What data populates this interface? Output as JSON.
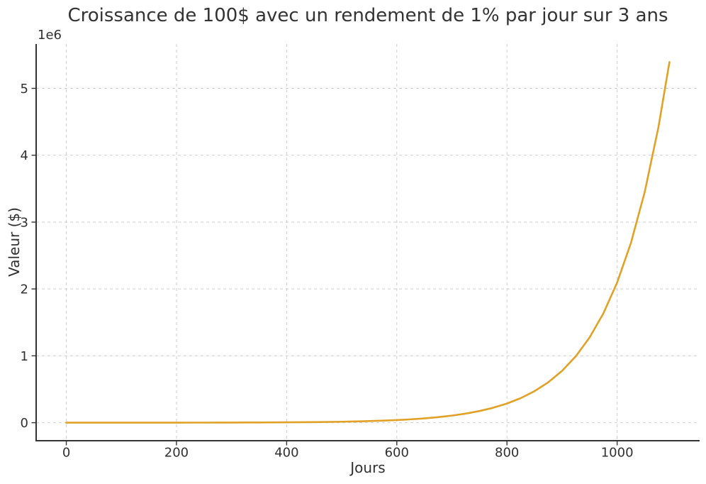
{
  "chart_data": {
    "type": "line",
    "title": "Croissance de 100$ avec un rendement de 1% par jour sur 3 ans",
    "xlabel": "Jours",
    "ylabel": "Valeur ($)",
    "y_offset_text": "1e6",
    "grid": true,
    "legend_position": "none",
    "line_color": "#E1A126",
    "axis_color": "#333333",
    "grid_color": "#cdcdcd",
    "text_color": "#303030",
    "xlim": [
      -54.75,
      1149.75
    ],
    "ylim": [
      -269590,
      5663590
    ],
    "xticks": {
      "values": [
        0,
        200,
        400,
        600,
        800,
        1000
      ],
      "labels": [
        "0",
        "200",
        "400",
        "600",
        "800",
        "1000"
      ]
    },
    "yticks": {
      "values": [
        0,
        1000000,
        2000000,
        3000000,
        4000000,
        5000000
      ],
      "labels": [
        "0",
        "1",
        "2",
        "3",
        "4",
        "5"
      ]
    },
    "x": [
      0,
      25,
      50,
      75,
      100,
      125,
      150,
      175,
      200,
      225,
      250,
      275,
      300,
      325,
      350,
      375,
      400,
      425,
      450,
      475,
      500,
      525,
      550,
      575,
      600,
      625,
      650,
      675,
      700,
      725,
      750,
      775,
      800,
      825,
      850,
      875,
      900,
      925,
      950,
      975,
      1000,
      1025,
      1050,
      1075,
      1095
    ],
    "y": [
      100,
      128,
      164,
      211,
      270,
      347,
      445,
      571,
      732,
      938,
      1203,
      1543,
      1979,
      2538,
      3255,
      4174,
      5354,
      6866,
      8805,
      11292,
      14477,
      18566,
      23810,
      30535,
      39160,
      50220,
      64400,
      82590,
      105920,
      135840,
      174210,
      223410,
      286510,
      367430,
      471210,
      604300,
      774990,
      993830,
      1274500,
      1634500,
      2095900,
      2687800,
      3447000,
      4420500,
      5393900
    ]
  }
}
